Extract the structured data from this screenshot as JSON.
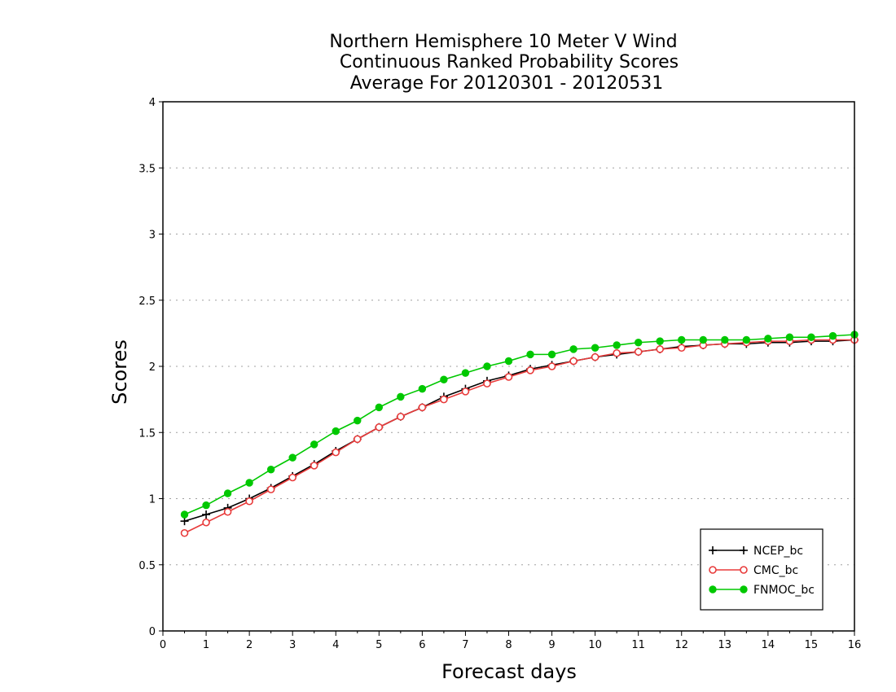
{
  "chart_data": {
    "type": "line",
    "title": [
      "Northern Hemisphere 10 Meter V Wind",
      "Continuous Ranked Probability Scores",
      "Average For 20120301 - 20120531"
    ],
    "xlabel": "Forecast days",
    "ylabel": "Scores",
    "xlim": [
      0,
      16
    ],
    "ylim": [
      0,
      4
    ],
    "x_ticks": [
      "0",
      "1",
      "2",
      "3",
      "4",
      "5",
      "6",
      "7",
      "8",
      "9",
      "10",
      "11",
      "12",
      "13",
      "14",
      "15",
      "16"
    ],
    "y_ticks": [
      "0",
      "0.5",
      "1",
      "1.5",
      "2",
      "2.5",
      "3",
      "3.5",
      "4"
    ],
    "grid": "horizontal dotted",
    "legend_position": "bottom-right",
    "x": [
      0.5,
      1,
      1.5,
      2,
      2.5,
      3,
      3.5,
      4,
      4.5,
      5,
      5.5,
      6,
      6.5,
      7,
      7.5,
      8,
      8.5,
      9,
      9.5,
      10,
      10.5,
      11,
      11.5,
      12,
      12.5,
      13,
      13.5,
      14,
      14.5,
      15,
      15.5,
      16
    ],
    "series": [
      {
        "name": "NCEP_bc",
        "color": "#000000",
        "marker": "plus",
        "values": [
          0.83,
          0.88,
          0.93,
          1.0,
          1.08,
          1.17,
          1.26,
          1.36,
          1.45,
          1.54,
          1.62,
          1.69,
          1.77,
          1.83,
          1.89,
          1.93,
          1.98,
          2.01,
          2.04,
          2.07,
          2.09,
          2.11,
          2.13,
          2.15,
          2.16,
          2.17,
          2.17,
          2.18,
          2.18,
          2.19,
          2.19,
          2.2
        ]
      },
      {
        "name": "CMC_bc",
        "color": "#e83a3a",
        "marker": "open-circle",
        "values": [
          0.74,
          0.82,
          0.9,
          0.98,
          1.07,
          1.16,
          1.25,
          1.35,
          1.45,
          1.54,
          1.62,
          1.69,
          1.75,
          1.81,
          1.87,
          1.92,
          1.97,
          2.0,
          2.04,
          2.07,
          2.1,
          2.11,
          2.13,
          2.14,
          2.16,
          2.17,
          2.18,
          2.19,
          2.19,
          2.2,
          2.2,
          2.2
        ]
      },
      {
        "name": "FNMOC_bc",
        "color": "#00c800",
        "marker": "filled-circle",
        "values": [
          0.88,
          0.95,
          1.04,
          1.12,
          1.22,
          1.31,
          1.41,
          1.51,
          1.59,
          1.69,
          1.77,
          1.83,
          1.9,
          1.95,
          2.0,
          2.04,
          2.09,
          2.09,
          2.13,
          2.14,
          2.16,
          2.18,
          2.19,
          2.2,
          2.2,
          2.2,
          2.2,
          2.21,
          2.22,
          2.22,
          2.23,
          2.24
        ]
      }
    ]
  }
}
